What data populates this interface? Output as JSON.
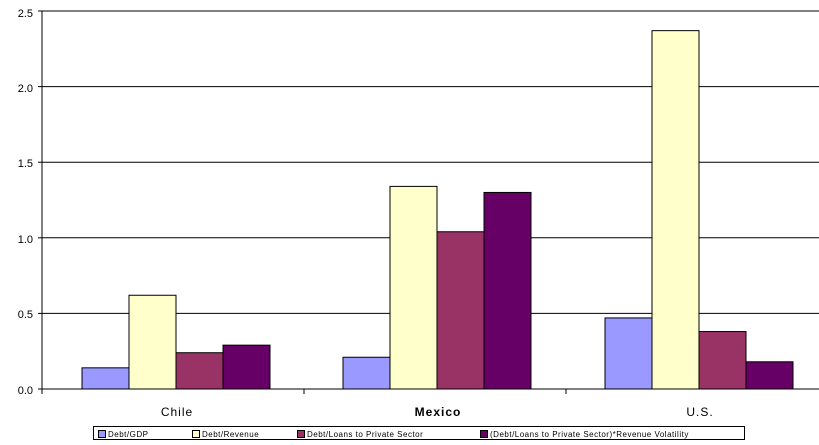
{
  "chart_data": {
    "type": "bar",
    "categories": [
      "Chile",
      "Mexico",
      "U.S."
    ],
    "series": [
      {
        "name": "Debt/GDP",
        "color": "#9999ff",
        "values": [
          0.14,
          0.21,
          0.47
        ]
      },
      {
        "name": "Debt/Revenue",
        "color": "#ffffcc",
        "values": [
          0.62,
          1.34,
          2.37
        ]
      },
      {
        "name": "Debt/Loans to Private Sector",
        "color": "#993366",
        "values": [
          0.24,
          1.04,
          0.38
        ]
      },
      {
        "name": "(Debt/Loans to Private Sector)*Revenue Volatility",
        "color": "#660066",
        "values": [
          0.29,
          1.3,
          0.18
        ]
      }
    ],
    "y_ticks": [
      "0.0",
      "0.5",
      "1.0",
      "1.5",
      "2.0",
      "2.5"
    ],
    "ylim": [
      0,
      2.5
    ],
    "grid": true,
    "legend_position": "bottom",
    "title": "",
    "xlabel": "",
    "ylabel": ""
  }
}
